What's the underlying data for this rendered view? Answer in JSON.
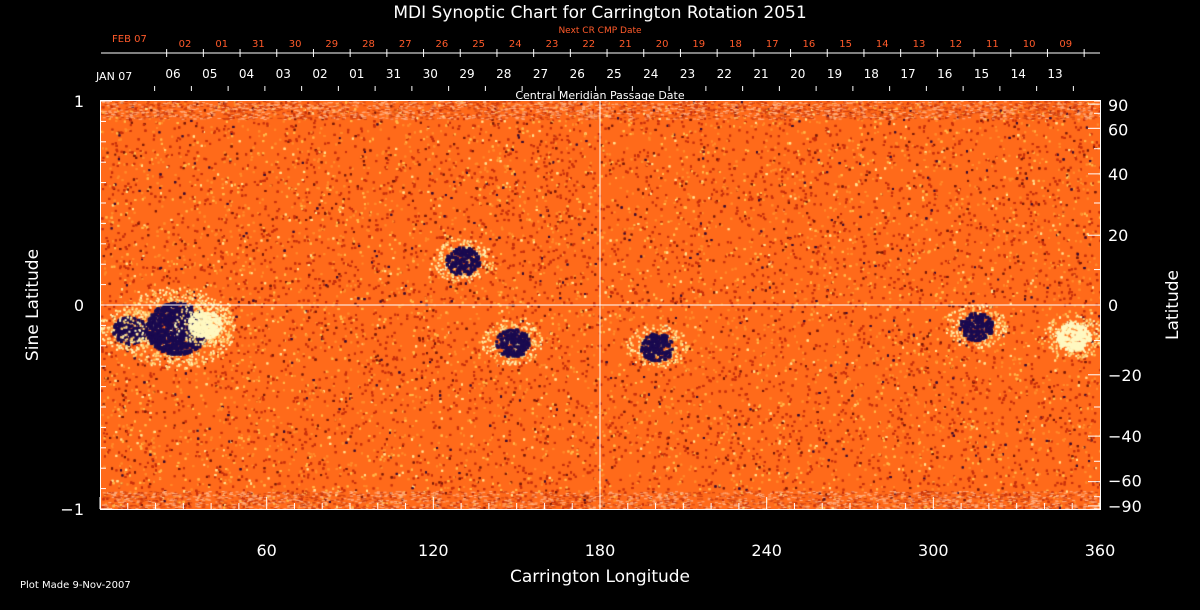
{
  "chart_data": {
    "type": "heatmap",
    "title": "MDI Synoptic Chart for Carrington Rotation 2051",
    "xlabel": "Carrington Longitude",
    "ylabel_left": "Sine Latitude",
    "ylabel_right": "Latitude",
    "xlim": [
      0,
      360
    ],
    "ylim": [
      -1,
      1
    ],
    "x_ticks": [
      60,
      120,
      180,
      240,
      300,
      360
    ],
    "y_ticks_left": [
      {
        "value": 1,
        "label": "1"
      },
      {
        "value": 0,
        "label": "0"
      },
      {
        "value": -1,
        "label": "−1"
      }
    ],
    "y_ticks_right": [
      90,
      60,
      40,
      20,
      0,
      -20,
      -40,
      -60,
      -90
    ],
    "y_ticks_right_labels": [
      "90",
      "60",
      "40",
      "20",
      "0",
      "−20",
      "−40",
      "−60",
      "−90"
    ],
    "crosshair": {
      "longitude": 180,
      "sine_latitude": 0
    },
    "cmp_axis": {
      "label": "Central Meridian Passage Date",
      "start_label": "JAN 07",
      "dates": [
        "06",
        "05",
        "04",
        "03",
        "02",
        "01",
        "31",
        "30",
        "29",
        "28",
        "27",
        "26",
        "25",
        "24",
        "23",
        "22",
        "21",
        "20",
        "19",
        "18",
        "17",
        "16",
        "15",
        "14",
        "13"
      ]
    },
    "next_cr_axis": {
      "label": "Next CR CMP Date",
      "start_label": "FEB 07",
      "dates": [
        "02",
        "01",
        "31",
        "30",
        "29",
        "28",
        "27",
        "26",
        "25",
        "24",
        "23",
        "22",
        "21",
        "20",
        "19",
        "18",
        "17",
        "16",
        "15",
        "14",
        "13",
        "12",
        "11",
        "10",
        "09"
      ]
    },
    "active_regions": [
      {
        "lon": 10,
        "sinlat": -0.12,
        "polarity": "negative"
      },
      {
        "lon": 27,
        "sinlat": -0.11,
        "polarity": "negative"
      },
      {
        "lon": 37,
        "sinlat": -0.09,
        "polarity": "positive"
      },
      {
        "lon": 130,
        "sinlat": 0.22,
        "polarity": "negative"
      },
      {
        "lon": 148,
        "sinlat": -0.18,
        "polarity": "negative"
      },
      {
        "lon": 200,
        "sinlat": -0.2,
        "polarity": "negative"
      },
      {
        "lon": 315,
        "sinlat": -0.1,
        "polarity": "negative"
      },
      {
        "lon": 350,
        "sinlat": -0.15,
        "polarity": "positive"
      }
    ],
    "colors": {
      "background": "#ff6a1a",
      "positive": "#fff8c0",
      "negative": "#1a0a50",
      "accent_red": "#ff5a2a"
    }
  },
  "footer": {
    "plot_made": "Plot Made  9-Nov-2007"
  }
}
